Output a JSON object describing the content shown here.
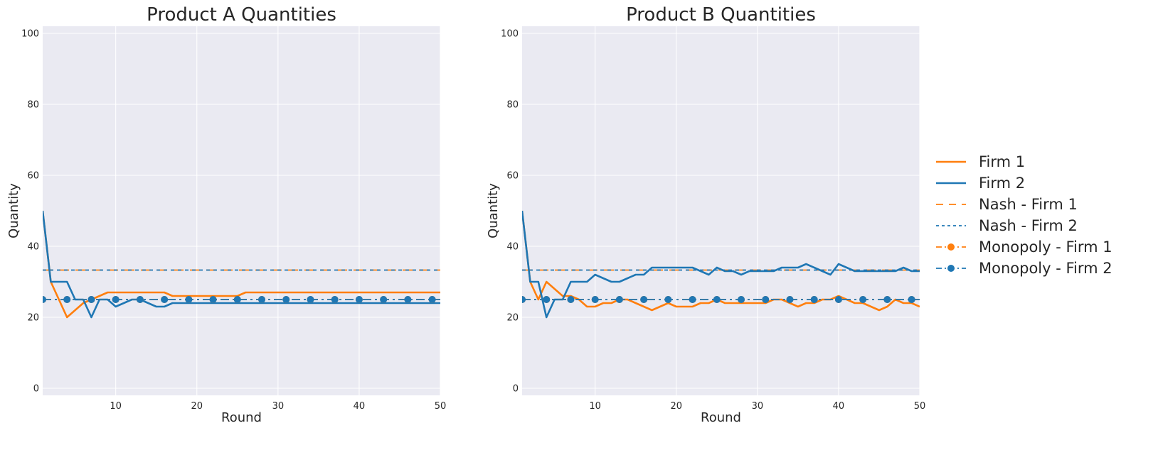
{
  "chart_data": [
    {
      "type": "line",
      "title": "Product A Quantities",
      "xlabel": "Round",
      "ylabel": "Quantity",
      "xlim": [
        1,
        50
      ],
      "ylim": [
        -2,
        102
      ],
      "xticks": [
        10,
        20,
        30,
        40,
        50
      ],
      "yticks": [
        0,
        20,
        40,
        60,
        80,
        100
      ],
      "grid": true,
      "x": [
        1,
        2,
        3,
        4,
        5,
        6,
        7,
        8,
        9,
        10,
        11,
        12,
        13,
        14,
        15,
        16,
        17,
        18,
        19,
        20,
        21,
        22,
        23,
        24,
        25,
        26,
        27,
        28,
        29,
        30,
        31,
        32,
        33,
        34,
        35,
        36,
        37,
        38,
        39,
        40,
        41,
        42,
        43,
        44,
        45,
        46,
        47,
        48,
        49,
        50
      ],
      "series": [
        {
          "name": "Firm 1",
          "color": "#ff7f0e",
          "style": "solid",
          "values": [
            50,
            30,
            25,
            20,
            22,
            24,
            25,
            26,
            27,
            27,
            27,
            27,
            27,
            27,
            27,
            27,
            26,
            26,
            26,
            26,
            26,
            26,
            26,
            26,
            26,
            27,
            27,
            27,
            27,
            27,
            27,
            27,
            27,
            27,
            27,
            27,
            27,
            27,
            27,
            27,
            27,
            27,
            27,
            27,
            27,
            27,
            27,
            27,
            27,
            27
          ]
        },
        {
          "name": "Firm 2",
          "color": "#1f77b4",
          "style": "solid",
          "values": [
            50,
            30,
            30,
            30,
            25,
            25,
            20,
            25,
            25,
            23,
            24,
            25,
            25,
            24,
            23,
            23,
            24,
            24,
            24,
            24,
            24,
            24,
            24,
            24,
            24,
            24,
            24,
            24,
            24,
            24,
            24,
            24,
            24,
            24,
            24,
            24,
            24,
            24,
            24,
            24,
            24,
            24,
            24,
            24,
            24,
            24,
            24,
            24,
            24,
            24
          ]
        },
        {
          "name": "Nash - Firm 1",
          "color": "#ff7f0e",
          "style": "dashed",
          "constant": 33.3
        },
        {
          "name": "Nash - Firm 2",
          "color": "#1f77b4",
          "style": "dotted",
          "constant": 33.3
        },
        {
          "name": "Monopoly - Firm 1",
          "color": "#ff7f0e",
          "style": "dashdot-marker",
          "constant": 25
        },
        {
          "name": "Monopoly - Firm 2",
          "color": "#1f77b4",
          "style": "dashdot-marker",
          "constant": 25
        }
      ]
    },
    {
      "type": "line",
      "title": "Product B Quantities",
      "xlabel": "Round",
      "ylabel": "Quantity",
      "xlim": [
        1,
        50
      ],
      "ylim": [
        -2,
        102
      ],
      "xticks": [
        10,
        20,
        30,
        40,
        50
      ],
      "yticks": [
        0,
        20,
        40,
        60,
        80,
        100
      ],
      "grid": true,
      "x": [
        1,
        2,
        3,
        4,
        5,
        6,
        7,
        8,
        9,
        10,
        11,
        12,
        13,
        14,
        15,
        16,
        17,
        18,
        19,
        20,
        21,
        22,
        23,
        24,
        25,
        26,
        27,
        28,
        29,
        30,
        31,
        32,
        33,
        34,
        35,
        36,
        37,
        38,
        39,
        40,
        41,
        42,
        43,
        44,
        45,
        46,
        47,
        48,
        49,
        50
      ],
      "series": [
        {
          "name": "Firm 1",
          "color": "#ff7f0e",
          "style": "solid",
          "values": [
            50,
            30,
            25,
            30,
            28,
            26,
            26,
            25,
            23,
            23,
            24,
            24,
            25,
            25,
            24,
            23,
            22,
            23,
            24,
            23,
            23,
            23,
            24,
            24,
            25,
            24,
            24,
            24,
            24,
            24,
            24,
            25,
            25,
            24,
            23,
            24,
            24,
            25,
            25,
            26,
            25,
            24,
            24,
            23,
            22,
            23,
            25,
            24,
            24,
            23
          ]
        },
        {
          "name": "Firm 2",
          "color": "#1f77b4",
          "style": "solid",
          "values": [
            50,
            30,
            30,
            20,
            25,
            25,
            30,
            30,
            30,
            32,
            31,
            30,
            30,
            31,
            32,
            32,
            34,
            34,
            34,
            34,
            34,
            34,
            33,
            32,
            34,
            33,
            33,
            32,
            33,
            33,
            33,
            33,
            34,
            34,
            34,
            35,
            34,
            33,
            32,
            35,
            34,
            33,
            33,
            33,
            33,
            33,
            33,
            34,
            33,
            33
          ]
        },
        {
          "name": "Nash - Firm 1",
          "color": "#ff7f0e",
          "style": "dashed",
          "constant": 33.3
        },
        {
          "name": "Nash - Firm 2",
          "color": "#1f77b4",
          "style": "dotted",
          "constant": 33.3
        },
        {
          "name": "Monopoly - Firm 1",
          "color": "#ff7f0e",
          "style": "dashdot-marker",
          "constant": 25
        },
        {
          "name": "Monopoly - Firm 2",
          "color": "#1f77b4",
          "style": "dashdot-marker",
          "constant": 25
        }
      ],
      "legend_position": "right"
    }
  ],
  "legend": {
    "items": [
      {
        "label": "Firm 1",
        "color": "#ff7f0e",
        "style": "solid"
      },
      {
        "label": "Firm 2",
        "color": "#1f77b4",
        "style": "solid"
      },
      {
        "label": "Nash - Firm 1",
        "color": "#ff7f0e",
        "style": "dashed"
      },
      {
        "label": "Nash - Firm 2",
        "color": "#1f77b4",
        "style": "dotted"
      },
      {
        "label": "Monopoly - Firm 1",
        "color": "#ff7f0e",
        "style": "dashdot-marker"
      },
      {
        "label": "Monopoly - Firm 2",
        "color": "#1f77b4",
        "style": "dashdot-marker"
      }
    ]
  },
  "colors": {
    "panel_bg": "#eaeaf2",
    "grid": "#ffffff",
    "firm1": "#ff7f0e",
    "firm2": "#1f77b4"
  }
}
